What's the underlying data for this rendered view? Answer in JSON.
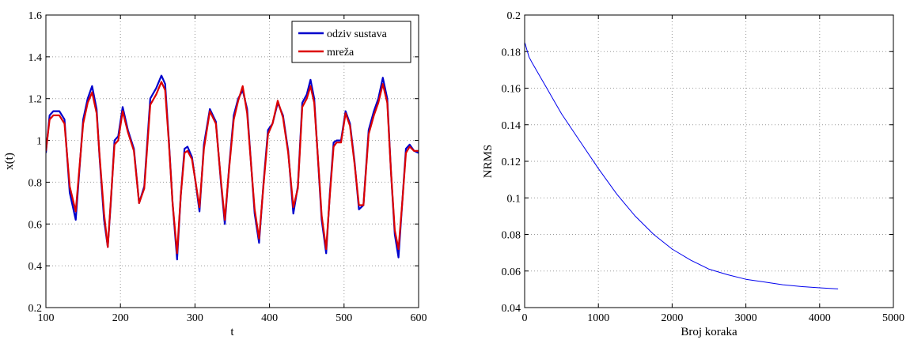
{
  "chart_data": [
    {
      "type": "line",
      "xlabel": "t",
      "ylabel": "x(t)",
      "xlim": [
        100,
        600
      ],
      "ylim": [
        0.2,
        1.6
      ],
      "xticks": [
        "100",
        "200",
        "300",
        "400",
        "500",
        "600"
      ],
      "yticks": [
        "0.2",
        "0.4",
        "0.6",
        "0.8",
        "1",
        "1.2",
        "1.4",
        "1.6"
      ],
      "grid": true,
      "legend_placement": "top-right",
      "series": [
        {
          "name": "odziv sustava",
          "color": "#0000cc",
          "x": [
            100,
            105,
            110,
            118,
            125,
            132,
            140,
            150,
            156,
            162,
            168,
            172,
            178,
            183,
            187,
            192,
            197,
            203,
            210,
            218,
            225,
            232,
            240,
            248,
            255,
            260,
            265,
            270,
            276,
            281,
            286,
            290,
            296,
            300,
            306,
            312,
            320,
            328,
            335,
            340,
            346,
            352,
            358,
            364,
            370,
            376,
            380,
            386,
            392,
            398,
            404,
            411,
            418,
            425,
            432,
            438,
            444,
            450,
            455,
            460,
            466,
            470,
            476,
            481,
            486,
            490,
            496,
            502,
            508,
            514,
            520,
            526,
            533,
            540,
            546,
            552,
            558,
            563,
            568,
            573,
            578,
            583,
            588,
            594,
            600
          ],
          "y": [
            0.94,
            1.12,
            1.14,
            1.14,
            1.1,
            0.75,
            0.62,
            1.1,
            1.2,
            1.26,
            1.15,
            0.92,
            0.62,
            0.49,
            0.7,
            1.0,
            1.02,
            1.16,
            1.05,
            0.96,
            0.7,
            0.78,
            1.2,
            1.25,
            1.31,
            1.27,
            1.0,
            0.7,
            0.43,
            0.74,
            0.96,
            0.97,
            0.92,
            0.82,
            0.66,
            0.98,
            1.15,
            1.09,
            0.79,
            0.6,
            0.88,
            1.12,
            1.2,
            1.24,
            1.15,
            0.85,
            0.65,
            0.51,
            0.8,
            1.05,
            1.08,
            1.18,
            1.12,
            0.95,
            0.65,
            0.78,
            1.18,
            1.22,
            1.29,
            1.2,
            0.85,
            0.62,
            0.46,
            0.75,
            0.99,
            1.0,
            1.0,
            1.14,
            1.08,
            0.9,
            0.67,
            0.69,
            1.05,
            1.14,
            1.2,
            1.3,
            1.2,
            0.85,
            0.55,
            0.44,
            0.7,
            0.96,
            0.98,
            0.95,
            0.94
          ]
        },
        {
          "name": "mreža",
          "color": "#dd0000",
          "x": [
            100,
            105,
            110,
            118,
            125,
            132,
            140,
            150,
            156,
            162,
            168,
            172,
            178,
            183,
            187,
            192,
            197,
            203,
            210,
            218,
            225,
            232,
            240,
            248,
            255,
            260,
            265,
            270,
            276,
            281,
            286,
            290,
            296,
            300,
            306,
            312,
            320,
            328,
            335,
            340,
            346,
            352,
            358,
            364,
            370,
            376,
            380,
            386,
            392,
            398,
            404,
            411,
            418,
            425,
            432,
            438,
            444,
            450,
            455,
            460,
            466,
            470,
            476,
            481,
            486,
            490,
            496,
            502,
            508,
            514,
            520,
            526,
            533,
            540,
            546,
            552,
            558,
            563,
            568,
            573,
            578,
            583,
            588,
            594,
            600
          ],
          "y": [
            0.95,
            1.1,
            1.12,
            1.12,
            1.08,
            0.78,
            0.66,
            1.08,
            1.18,
            1.23,
            1.13,
            0.93,
            0.65,
            0.49,
            0.71,
            0.98,
            1.0,
            1.14,
            1.04,
            0.95,
            0.7,
            0.77,
            1.17,
            1.22,
            1.28,
            1.24,
            0.99,
            0.7,
            0.46,
            0.74,
            0.94,
            0.95,
            0.91,
            0.82,
            0.68,
            0.96,
            1.14,
            1.08,
            0.8,
            0.62,
            0.87,
            1.1,
            1.19,
            1.26,
            1.13,
            0.85,
            0.67,
            0.53,
            0.79,
            1.03,
            1.08,
            1.19,
            1.11,
            0.94,
            0.68,
            0.77,
            1.16,
            1.2,
            1.26,
            1.18,
            0.86,
            0.64,
            0.48,
            0.74,
            0.97,
            0.99,
            0.99,
            1.13,
            1.07,
            0.89,
            0.69,
            0.69,
            1.03,
            1.12,
            1.18,
            1.27,
            1.18,
            0.85,
            0.57,
            0.48,
            0.7,
            0.94,
            0.97,
            0.95,
            0.95
          ]
        }
      ]
    },
    {
      "type": "line",
      "xlabel": "Broj koraka",
      "ylabel": "NRMS",
      "xlim": [
        0,
        5000
      ],
      "ylim": [
        0.04,
        0.2
      ],
      "xticks": [
        "0",
        "1000",
        "2000",
        "3000",
        "4000",
        "5000"
      ],
      "yticks": [
        "0.04",
        "0.06",
        "0.08",
        "0.1",
        "0.12",
        "0.14",
        "0.16",
        "0.18",
        "0.2"
      ],
      "grid": true,
      "series": [
        {
          "color": "#0000ee",
          "x": [
            0,
            10,
            30,
            60,
            100,
            200,
            300,
            400,
            500,
            750,
            1000,
            1250,
            1500,
            1750,
            2000,
            2250,
            2500,
            2750,
            3000,
            3250,
            3500,
            3750,
            4000,
            4250
          ],
          "y": [
            0.185,
            0.184,
            0.181,
            0.177,
            0.174,
            0.167,
            0.16,
            0.153,
            0.146,
            0.131,
            0.116,
            0.102,
            0.09,
            0.08,
            0.072,
            0.066,
            0.061,
            0.058,
            0.0555,
            0.054,
            0.0525,
            0.0515,
            0.0508,
            0.0502
          ]
        }
      ]
    }
  ]
}
